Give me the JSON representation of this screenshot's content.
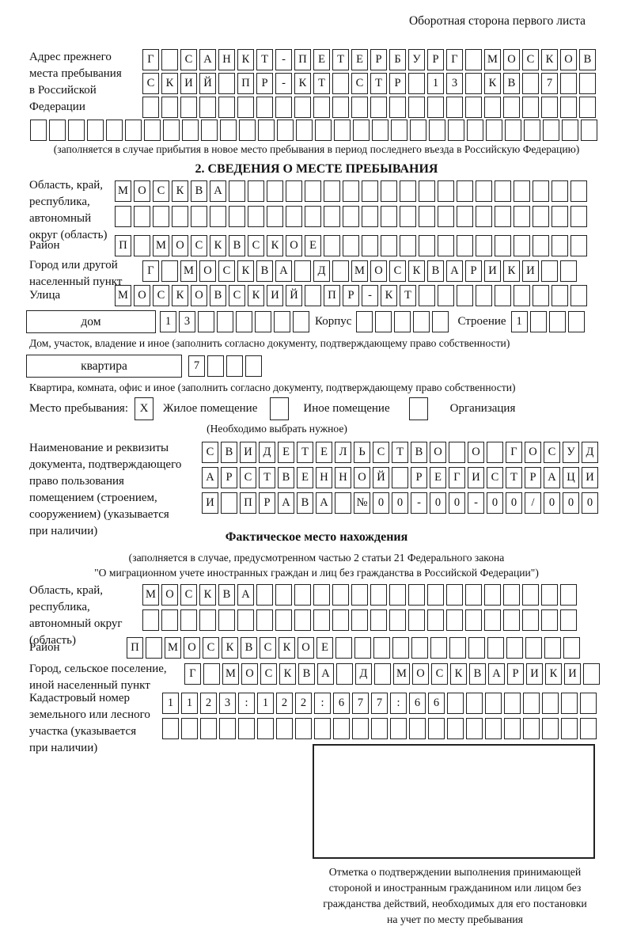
{
  "page_title": "Оборотная сторона первого листа",
  "prev_address": {
    "label": "Адрес прежнего\nместа пребывания\nв Российской\nФедерации",
    "line1": "Г САНКТ-ПЕТЕРБУРГ МОСКОВ",
    "line2": "СКИЙ ПР-КТ СТР 13 КВ 7",
    "line3": "",
    "line4": "",
    "note": "(заполняется в случае прибытия в новое место пребывания в период последнего въезда в Российскую Федерацию)"
  },
  "section2": {
    "title": "2. СВЕДЕНИЯ О МЕСТЕ ПРЕБЫВАНИЯ",
    "region": {
      "label": "Область, край,\nреспублика,\nавтономный\nокруг (область)",
      "line1": "МОСКВА",
      "line2": ""
    },
    "district": {
      "label": "Район",
      "value": "П МОСКВСКОЕ"
    },
    "city": {
      "label": "Город или другой\nнаселенный пункт",
      "value": "Г МОСКВА Д МОСКВАРИКИ"
    },
    "street": {
      "label": "Улица",
      "value": "МОСКОВСКИЙ ПР-КТ"
    },
    "house": {
      "type_label": "дом",
      "number": "13",
      "korpus_label": "Корпус",
      "korpus": "",
      "stroenie_label": "Строение",
      "stroenie": "1",
      "note": "Дом, участок, владение и иное (заполнить согласно документу, подтверждающему право собственности)"
    },
    "apartment": {
      "type_label": "квартира",
      "number": "7",
      "note": "Квартира, комната, офис и иное (заполнить согласно документу, подтверждающему право собственности)"
    },
    "stay_place": {
      "label": "Место пребывания:",
      "checked": "X",
      "option1": "Жилое помещение",
      "cb2": "",
      "option2": "Иное помещение",
      "cb3": "",
      "option3": "Организация",
      "note": "(Необходимо выбрать нужное)"
    },
    "document": {
      "label": "Наименование и реквизиты\nдокумента, подтверждающего\nправо пользования\nпомещением (строением,\nсооружением) (указывается\nпри наличии)",
      "line1": "СВИДЕТЕЛЬСТВО О ГОСУД",
      "line2": "АРСТВЕННОЙ РЕГИСТРАЦИ",
      "line3": "И ПРАВА №00-00-00/000"
    }
  },
  "actual_location": {
    "title": "Фактическое место нахождения",
    "note1": "(заполняется в случае, предусмотренном частью 2 статьи 21 Федерального закона",
    "note2": "\"О миграционном учете иностранных граждан и лиц без гражданства в Российской Федерации\")",
    "region": {
      "label": "Область, край,\nреспублика,\nавтономный округ\n(область)",
      "line1": "МОСКВА",
      "line2": ""
    },
    "district": {
      "label": "Район",
      "value": "П МОСКВСКОЕ"
    },
    "city": {
      "label": "Город, сельское поселение,\nиной населенный пункт",
      "value": "Г МОСКВА Д МОСКВАРИКИ"
    },
    "cadastral": {
      "label": "Кадастровый номер\nземельного или лесного\nучастка (указывается\nпри наличии)",
      "line1": "1123:122:677:66",
      "line2": ""
    },
    "stamp_note": "Отметка о подтверждении выполнения принимающей\nстороной и иностранным гражданином или лицом без\nгражданства действий, необходимых для его постановки\nна учет по месту пребывания"
  }
}
